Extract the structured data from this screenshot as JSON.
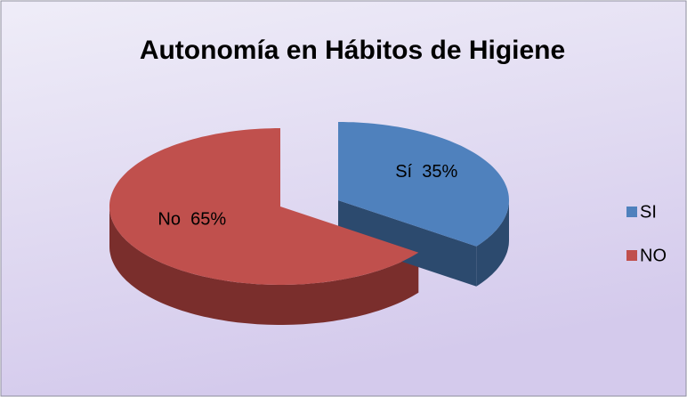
{
  "chart_data": {
    "type": "pie3d",
    "title": "Autonomía en Hábitos de Higiene",
    "categories": [
      "SI",
      "NO"
    ],
    "values": [
      35,
      65
    ],
    "value_labels": [
      "Sí  35%",
      "No  65%"
    ],
    "colors": [
      "#4f81bd",
      "#c0504d"
    ],
    "side_colors": [
      "#2c4a6e",
      "#7a2e2c"
    ],
    "explode": [
      true,
      false
    ],
    "legend": "right"
  }
}
